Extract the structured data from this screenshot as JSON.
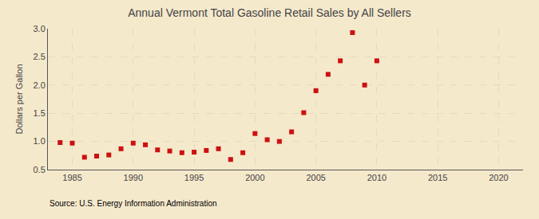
{
  "chart_data": {
    "type": "scatter",
    "title": "Annual Vermont Total Gasoline Retail Sales by All Sellers",
    "ylabel": "Dollars per Gallon",
    "annotations": [
      "Source: U.S. Energy Information Administration"
    ],
    "x": [
      1984,
      1985,
      1986,
      1987,
      1988,
      1989,
      1990,
      1991,
      1992,
      1993,
      1994,
      1995,
      1996,
      1997,
      1998,
      1999,
      2000,
      2001,
      2002,
      2003,
      2004,
      2005,
      2006,
      2007,
      2008,
      2009,
      2010
    ],
    "values": [
      0.98,
      0.97,
      0.72,
      0.74,
      0.76,
      0.87,
      0.97,
      0.94,
      0.85,
      0.83,
      0.8,
      0.81,
      0.84,
      0.87,
      0.68,
      0.8,
      1.14,
      1.03,
      1.0,
      1.17,
      1.51,
      1.9,
      2.19,
      2.43,
      2.93,
      2.0,
      2.43
    ],
    "color": "#cc1111",
    "marker": "square",
    "xlim": [
      1983,
      2022
    ],
    "ylim": [
      0.5,
      3.0
    ],
    "xticks": [
      1985,
      1990,
      1995,
      2000,
      2005,
      2010,
      2015,
      2020
    ],
    "yticks": [
      0.5,
      {
        "value": 1.0,
        "label": "1.0"
      },
      1.5,
      {
        "value": 2.0,
        "label": "2.0"
      },
      2.5,
      {
        "value": 3.0,
        "label": "3.0"
      }
    ],
    "grid": true
  }
}
